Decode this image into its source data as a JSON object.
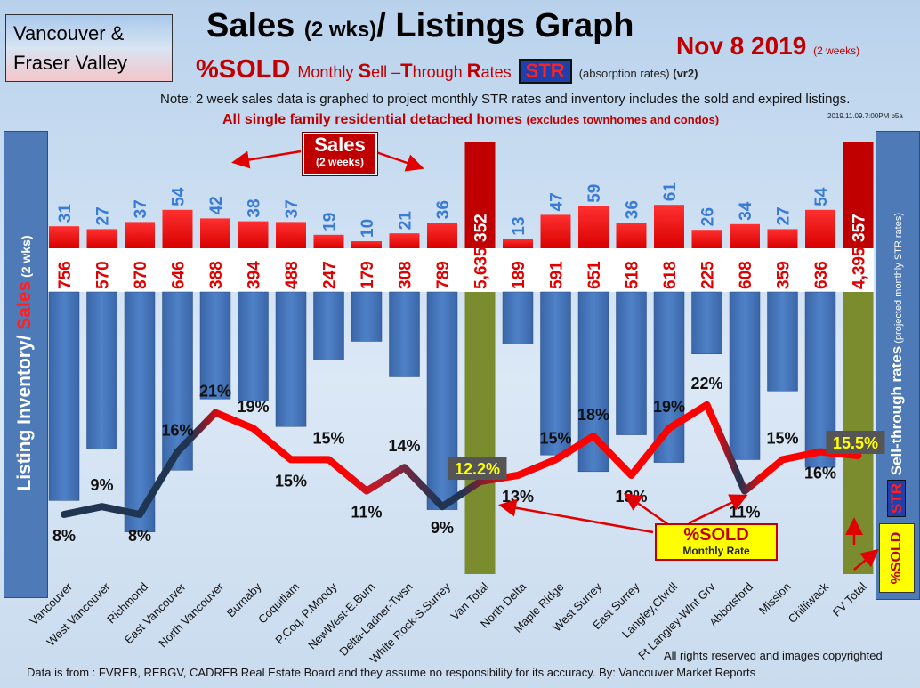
{
  "header": {
    "region_line1": "Vancouver &",
    "region_line2": "Fraser Valley",
    "title_main": "Sales ",
    "title_small": "(2 wks)",
    "title_rest": "/ Listings Graph",
    "date_main": "Nov 8 2019",
    "date_small": "(2 weeks)",
    "subtitle_sold": "%SOLD",
    "subtitle_m1": "Monthly ",
    "subtitle_s": "S",
    "subtitle_m2": "ell –",
    "subtitle_t": "T",
    "subtitle_m3": "hrough ",
    "subtitle_r": "R",
    "subtitle_m4": "ates",
    "str_badge": "STR",
    "absorption": "(absorption rates)",
    "version": "(vr2)",
    "note": "Note: 2 week sales data is graphed to project monthly STR rates and inventory includes the sold and expired listings.",
    "scope_main": "All single family residential detached homes ",
    "scope_small": "(excludes townhomes and condos)",
    "stamp": "2019.11.09.7:00PM b5a"
  },
  "side_labels": {
    "left_inventory": "Listing Inventory/ ",
    "left_sales": "Sales",
    "left_small": " (2  wks)",
    "right_str": "STR",
    "right_main": " Sell-through rates",
    "right_small": "  (projected monthly STR rates)",
    "right_sold": "%SOLD"
  },
  "callouts": {
    "sales_main": "Sales",
    "sales_sub": "(2 weeks)",
    "sold_main": "%SOLD",
    "sold_sub": "Monthly Rate"
  },
  "footer": {
    "rights": "All rights reserved and  images copyrighted",
    "source": "Data is from : FVREB, REBGV, CADREB Real Estate Board and they assume no responsibility for its accuracy. By: Vancouver Market Reports"
  },
  "colors": {
    "sales_bar": "#ff0000",
    "inventory_bar": "#4f81c7",
    "total_sales_bar": "#c00000",
    "total_inventory_bar": "#7a8c2e",
    "label_blue": "#3a7bd5",
    "label_red": "#e00000",
    "line_low": "#1f3552",
    "line_high": "#ff0000",
    "total_rate_box": "#555555",
    "total_rate_text": "#ffff00"
  },
  "chart_data": {
    "type": "bar",
    "categories": [
      "Vancouver",
      "West Vancouver",
      "Richmond",
      "East Vancouver",
      "North Vancouver",
      "Burnaby",
      "Coquitlam",
      "P.Coq, P.Moody",
      "NewWest-E.Burn",
      "Delta-Ladner-Twsn",
      "White Rock-S.Surrey",
      "Van Total",
      "North Delta",
      "Maple Ridge",
      "West Surrey",
      "East Surrey",
      "Langley,Clvrdl",
      "Ft Langley-Wlnt Grv",
      "Abbotsford",
      "Mission",
      "Chilliwack",
      "FV Total"
    ],
    "sales": [
      31,
      27,
      37,
      54,
      42,
      38,
      37,
      19,
      10,
      21,
      36,
      352,
      13,
      47,
      59,
      36,
      61,
      26,
      34,
      27,
      54,
      357
    ],
    "inventory": [
      756,
      570,
      870,
      646,
      388,
      394,
      488,
      247,
      179,
      308,
      789,
      5635,
      189,
      591,
      651,
      518,
      618,
      225,
      608,
      359,
      636,
      4395
    ],
    "inventory_labels": [
      "756",
      "570",
      "870",
      "646",
      "388",
      "394",
      "488",
      "247",
      "179",
      "308",
      "789",
      "5,635",
      "189",
      "591",
      "651",
      "518",
      "618",
      "225",
      "608",
      "359",
      "636",
      "4,395"
    ],
    "sold_percent": [
      8,
      9,
      8,
      16,
      21,
      19,
      15,
      15,
      11,
      14,
      9,
      12.2,
      13,
      15,
      18,
      13,
      19,
      22,
      11,
      15,
      16,
      15.5
    ],
    "sold_labels": [
      "8%",
      "9%",
      "8%",
      "16%",
      "21%",
      "19%",
      "15%",
      "15%",
      "11%",
      "14%",
      "9%",
      "12.2%",
      "13%",
      "15%",
      "18%",
      "13%",
      "19%",
      "22%",
      "11%",
      "15%",
      "16%",
      "15.5%"
    ],
    "total_indices": [
      11,
      21
    ]
  }
}
